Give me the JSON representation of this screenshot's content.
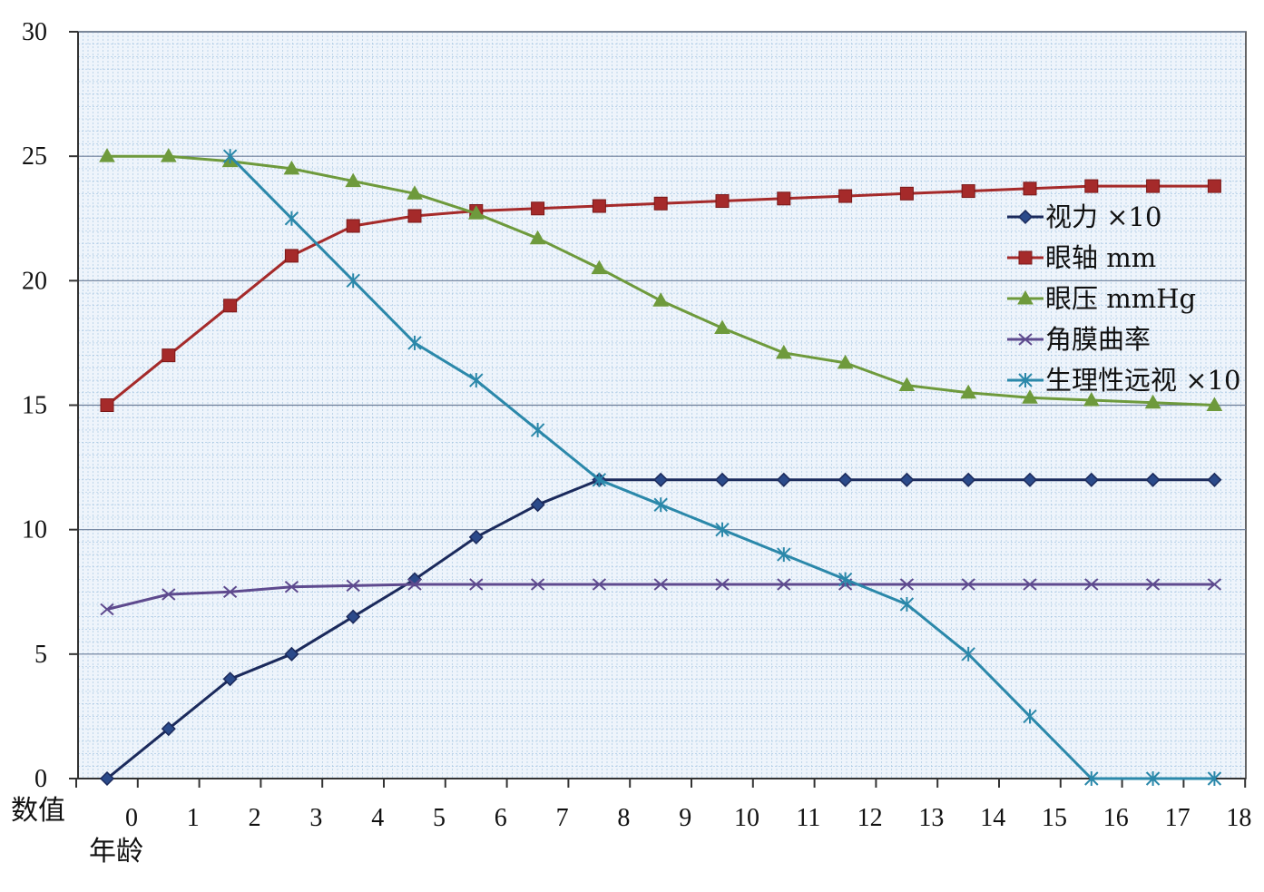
{
  "chart_data": {
    "type": "line",
    "title": "",
    "ylabel": "数值",
    "xlabel": "年龄",
    "x_ticks": [
      "0",
      "1",
      "2",
      "3",
      "4",
      "5",
      "6",
      "7",
      "8",
      "9",
      "10",
      "11",
      "12",
      "13",
      "14",
      "15",
      "16",
      "17",
      "18"
    ],
    "y_ticks": [
      "0",
      "5",
      "10",
      "15",
      "20",
      "25",
      "30"
    ],
    "ylim": [
      0,
      30
    ],
    "grid": true,
    "legend_position": "right",
    "x": [
      0,
      1,
      2,
      3,
      4,
      5,
      6,
      7,
      8,
      9,
      10,
      11,
      12,
      13,
      14,
      15,
      16,
      17,
      18
    ],
    "series": [
      {
        "name": "视力 ×10",
        "color": "#1b2a5c",
        "marker": "diamond",
        "values": [
          0,
          2,
          4,
          5,
          6.5,
          8,
          9.7,
          11,
          12,
          12,
          12,
          12,
          12,
          12,
          12,
          12,
          12,
          12,
          12
        ]
      },
      {
        "name": "眼轴 mm",
        "color": "#a52a2a",
        "marker": "square",
        "values": [
          15,
          17,
          19,
          21,
          22.2,
          22.6,
          22.8,
          22.9,
          23,
          23.1,
          23.2,
          23.3,
          23.4,
          23.5,
          23.6,
          23.7,
          23.8,
          23.8,
          23.8
        ]
      },
      {
        "name": "眼压 mmHg",
        "color": "#6e9a3c",
        "marker": "triangle",
        "values": [
          25,
          25,
          24.8,
          24.5,
          24,
          23.5,
          22.7,
          21.7,
          20.5,
          19.2,
          18.1,
          17.1,
          16.7,
          15.8,
          15.5,
          15.3,
          15.2,
          15.1,
          15
        ]
      },
      {
        "name": "角膜曲率",
        "color": "#5e4a8e",
        "marker": "x",
        "values": [
          6.8,
          7.4,
          7.5,
          7.7,
          7.75,
          7.8,
          7.8,
          7.8,
          7.8,
          7.8,
          7.8,
          7.8,
          7.8,
          7.8,
          7.8,
          7.8,
          7.8,
          7.8,
          7.8
        ]
      },
      {
        "name": "生理性远视 ×10",
        "color": "#2b88aa",
        "marker": "star",
        "values": [
          null,
          null,
          25,
          22.5,
          20,
          17.5,
          16,
          14,
          12,
          11,
          10,
          9,
          8,
          7,
          5,
          2.5,
          0,
          0,
          0
        ]
      }
    ]
  },
  "colors": {
    "plot_background": "#eef4fb",
    "minor_grid": "#9fc1e0",
    "major_grid": "#6b7d99",
    "axis": "#333333"
  }
}
